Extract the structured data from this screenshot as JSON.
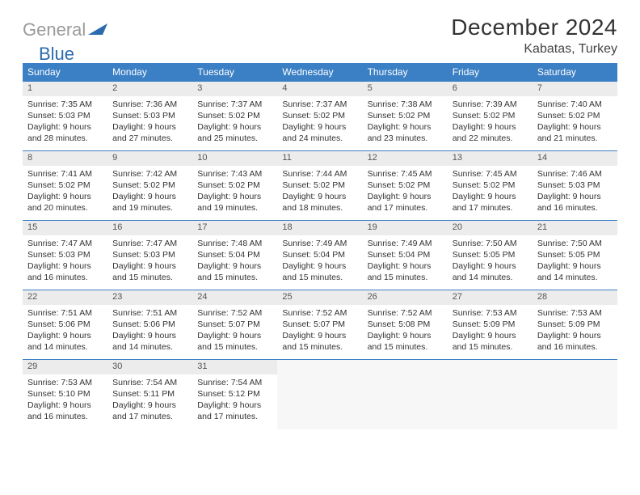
{
  "logo": {
    "gray": "General",
    "blue": "Blue"
  },
  "title": "December 2024",
  "subtitle": "Kabatas, Turkey",
  "colors": {
    "header_bg": "#3b7fc4",
    "header_text": "#ffffff",
    "daynum_bg": "#ececec",
    "daynum_border": "#3b7fc4",
    "logo_gray": "#9a9a9a",
    "logo_blue": "#2b6aad"
  },
  "weekdays": [
    "Sunday",
    "Monday",
    "Tuesday",
    "Wednesday",
    "Thursday",
    "Friday",
    "Saturday"
  ],
  "weeks": [
    [
      {
        "n": "1",
        "sr": "7:35 AM",
        "ss": "5:03 PM",
        "dl": "9 hours and 28 minutes."
      },
      {
        "n": "2",
        "sr": "7:36 AM",
        "ss": "5:03 PM",
        "dl": "9 hours and 27 minutes."
      },
      {
        "n": "3",
        "sr": "7:37 AM",
        "ss": "5:02 PM",
        "dl": "9 hours and 25 minutes."
      },
      {
        "n": "4",
        "sr": "7:37 AM",
        "ss": "5:02 PM",
        "dl": "9 hours and 24 minutes."
      },
      {
        "n": "5",
        "sr": "7:38 AM",
        "ss": "5:02 PM",
        "dl": "9 hours and 23 minutes."
      },
      {
        "n": "6",
        "sr": "7:39 AM",
        "ss": "5:02 PM",
        "dl": "9 hours and 22 minutes."
      },
      {
        "n": "7",
        "sr": "7:40 AM",
        "ss": "5:02 PM",
        "dl": "9 hours and 21 minutes."
      }
    ],
    [
      {
        "n": "8",
        "sr": "7:41 AM",
        "ss": "5:02 PM",
        "dl": "9 hours and 20 minutes."
      },
      {
        "n": "9",
        "sr": "7:42 AM",
        "ss": "5:02 PM",
        "dl": "9 hours and 19 minutes."
      },
      {
        "n": "10",
        "sr": "7:43 AM",
        "ss": "5:02 PM",
        "dl": "9 hours and 19 minutes."
      },
      {
        "n": "11",
        "sr": "7:44 AM",
        "ss": "5:02 PM",
        "dl": "9 hours and 18 minutes."
      },
      {
        "n": "12",
        "sr": "7:45 AM",
        "ss": "5:02 PM",
        "dl": "9 hours and 17 minutes."
      },
      {
        "n": "13",
        "sr": "7:45 AM",
        "ss": "5:02 PM",
        "dl": "9 hours and 17 minutes."
      },
      {
        "n": "14",
        "sr": "7:46 AM",
        "ss": "5:03 PM",
        "dl": "9 hours and 16 minutes."
      }
    ],
    [
      {
        "n": "15",
        "sr": "7:47 AM",
        "ss": "5:03 PM",
        "dl": "9 hours and 16 minutes."
      },
      {
        "n": "16",
        "sr": "7:47 AM",
        "ss": "5:03 PM",
        "dl": "9 hours and 15 minutes."
      },
      {
        "n": "17",
        "sr": "7:48 AM",
        "ss": "5:04 PM",
        "dl": "9 hours and 15 minutes."
      },
      {
        "n": "18",
        "sr": "7:49 AM",
        "ss": "5:04 PM",
        "dl": "9 hours and 15 minutes."
      },
      {
        "n": "19",
        "sr": "7:49 AM",
        "ss": "5:04 PM",
        "dl": "9 hours and 15 minutes."
      },
      {
        "n": "20",
        "sr": "7:50 AM",
        "ss": "5:05 PM",
        "dl": "9 hours and 14 minutes."
      },
      {
        "n": "21",
        "sr": "7:50 AM",
        "ss": "5:05 PM",
        "dl": "9 hours and 14 minutes."
      }
    ],
    [
      {
        "n": "22",
        "sr": "7:51 AM",
        "ss": "5:06 PM",
        "dl": "9 hours and 14 minutes."
      },
      {
        "n": "23",
        "sr": "7:51 AM",
        "ss": "5:06 PM",
        "dl": "9 hours and 14 minutes."
      },
      {
        "n": "24",
        "sr": "7:52 AM",
        "ss": "5:07 PM",
        "dl": "9 hours and 15 minutes."
      },
      {
        "n": "25",
        "sr": "7:52 AM",
        "ss": "5:07 PM",
        "dl": "9 hours and 15 minutes."
      },
      {
        "n": "26",
        "sr": "7:52 AM",
        "ss": "5:08 PM",
        "dl": "9 hours and 15 minutes."
      },
      {
        "n": "27",
        "sr": "7:53 AM",
        "ss": "5:09 PM",
        "dl": "9 hours and 15 minutes."
      },
      {
        "n": "28",
        "sr": "7:53 AM",
        "ss": "5:09 PM",
        "dl": "9 hours and 16 minutes."
      }
    ],
    [
      {
        "n": "29",
        "sr": "7:53 AM",
        "ss": "5:10 PM",
        "dl": "9 hours and 16 minutes."
      },
      {
        "n": "30",
        "sr": "7:54 AM",
        "ss": "5:11 PM",
        "dl": "9 hours and 17 minutes."
      },
      {
        "n": "31",
        "sr": "7:54 AM",
        "ss": "5:12 PM",
        "dl": "9 hours and 17 minutes."
      },
      null,
      null,
      null,
      null
    ]
  ],
  "labels": {
    "sunrise": "Sunrise:",
    "sunset": "Sunset:",
    "daylight": "Daylight:"
  }
}
